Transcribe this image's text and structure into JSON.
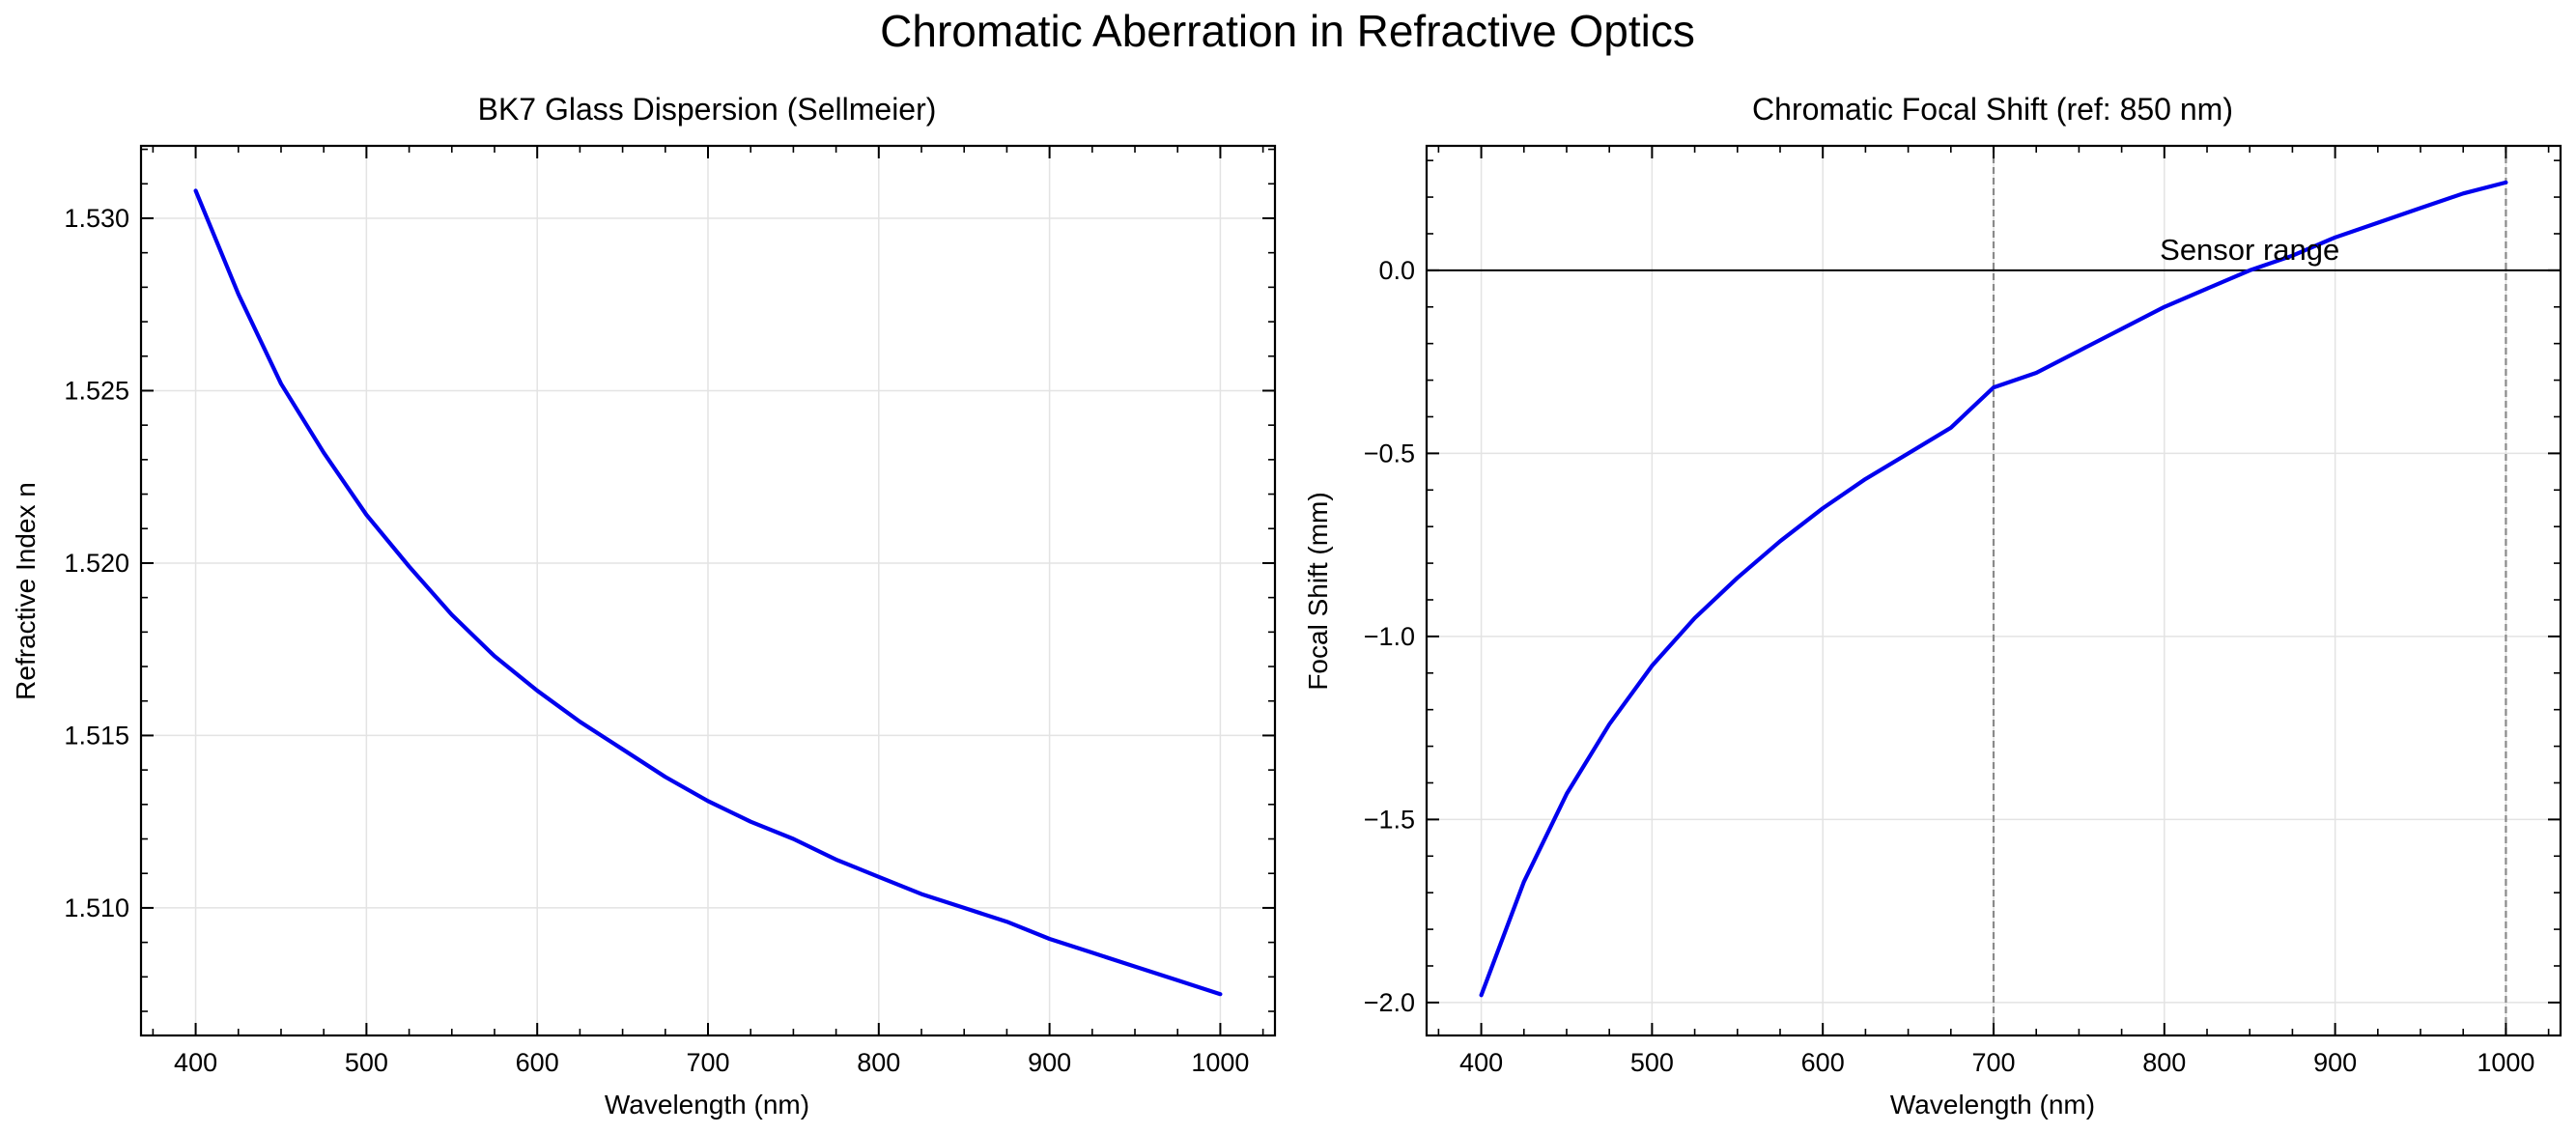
{
  "figure": {
    "title": "Chromatic Aberration in Refractive Optics"
  },
  "colors": {
    "curve": "#0000ee",
    "grid": "#e3e3e3",
    "zero_line": "#000000",
    "vline": "#8a8a8a"
  },
  "chart_data": [
    {
      "type": "line",
      "title": "BK7 Glass Dispersion (Sellmeier)",
      "xlabel": "Wavelength (nm)",
      "ylabel": "Refractive Index n",
      "xlim": [
        368,
        1032
      ],
      "ylim": [
        1.5063,
        1.5321
      ],
      "grid": true,
      "xticks": [
        400,
        500,
        600,
        700,
        800,
        900,
        1000
      ],
      "xtick_labels": [
        "400",
        "500",
        "600",
        "700",
        "800",
        "900",
        "1000"
      ],
      "yticks": [
        1.51,
        1.515,
        1.52,
        1.525,
        1.53
      ],
      "ytick_labels": [
        "1.510",
        "1.515",
        "1.520",
        "1.525",
        "1.530"
      ],
      "series": [
        {
          "x": [
            400,
            425,
            450,
            475,
            500,
            525,
            550,
            575,
            600,
            625,
            650,
            675,
            700,
            725,
            750,
            775,
            800,
            825,
            850,
            875,
            900,
            925,
            950,
            975,
            1000
          ],
          "y": [
            1.5308,
            1.5278,
            1.5252,
            1.5232,
            1.5214,
            1.5199,
            1.5185,
            1.5173,
            1.5163,
            1.5154,
            1.5146,
            1.5138,
            1.5131,
            1.5125,
            1.512,
            1.5114,
            1.5109,
            1.5104,
            1.51,
            1.5096,
            1.5091,
            1.5087,
            1.5083,
            1.5079,
            1.5075
          ]
        }
      ]
    },
    {
      "type": "line",
      "title": "Chromatic Focal Shift (ref: 850 nm)",
      "xlabel": "Wavelength (nm)",
      "ylabel": "Focal Shift (mm)",
      "xlim": [
        368,
        1032
      ],
      "ylim": [
        -2.09,
        0.34
      ],
      "grid": true,
      "xticks": [
        400,
        500,
        600,
        700,
        800,
        900,
        1000
      ],
      "xtick_labels": [
        "400",
        "500",
        "600",
        "700",
        "800",
        "900",
        "1000"
      ],
      "yticks": [
        -2.0,
        -1.5,
        -1.0,
        -0.5,
        0.0
      ],
      "ytick_labels": [
        "−2.0",
        "−1.5",
        "−1.0",
        "−0.5",
        "0.0"
      ],
      "hline": 0.0,
      "vlines": [
        700,
        1000
      ],
      "annotation": {
        "text": "Sensor range",
        "x": 850,
        "y": 0.05
      },
      "series": [
        {
          "x": [
            400,
            425,
            450,
            475,
            500,
            525,
            550,
            575,
            600,
            625,
            650,
            675,
            700,
            725,
            750,
            775,
            800,
            825,
            850,
            875,
            900,
            925,
            950,
            975,
            1000
          ],
          "y": [
            -1.98,
            -1.67,
            -1.43,
            -1.24,
            -1.08,
            -0.95,
            -0.84,
            -0.74,
            -0.65,
            -0.57,
            -0.5,
            -0.43,
            -0.32,
            -0.28,
            -0.22,
            -0.16,
            -0.1,
            -0.05,
            0.0,
            0.04,
            0.09,
            0.13,
            0.17,
            0.21,
            0.24
          ]
        }
      ]
    }
  ]
}
